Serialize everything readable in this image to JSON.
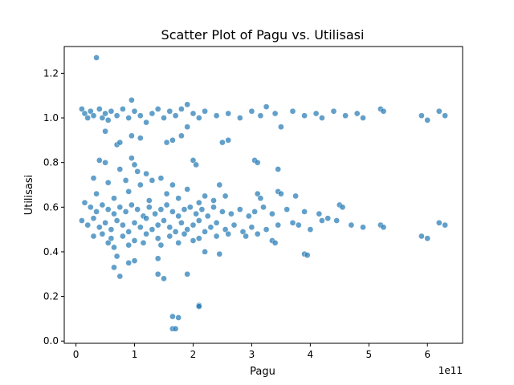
{
  "chart_data": {
    "type": "scatter",
    "title": "Scatter Plot of Pagu vs. Utilisasi",
    "xlabel": "Pagu",
    "ylabel": "Utilisasi",
    "x_offset_label": "1e11",
    "xlim": [
      -0.2,
      6.6
    ],
    "ylim": [
      -0.01,
      1.32
    ],
    "xticks": [
      0,
      1,
      2,
      3,
      4,
      5,
      6
    ],
    "xtick_labels": [
      "0",
      "1",
      "2",
      "3",
      "4",
      "5",
      "6"
    ],
    "yticks": [
      0.0,
      0.2,
      0.4,
      0.6,
      0.8,
      1.0,
      1.2
    ],
    "ytick_labels": [
      "0.0",
      "0.2",
      "0.4",
      "0.6",
      "0.8",
      "1.0",
      "1.2"
    ],
    "grid": false,
    "marker_color": "#1f77b4",
    "points": [
      {
        "x": 0.35,
        "y": 1.27
      },
      {
        "x": 0.1,
        "y": 1.04
      },
      {
        "x": 0.15,
        "y": 1.02
      },
      {
        "x": 0.2,
        "y": 1.0
      },
      {
        "x": 0.25,
        "y": 1.03
      },
      {
        "x": 0.3,
        "y": 1.01
      },
      {
        "x": 0.4,
        "y": 1.04
      },
      {
        "x": 0.45,
        "y": 1.0
      },
      {
        "x": 0.5,
        "y": 1.02
      },
      {
        "x": 0.55,
        "y": 0.99
      },
      {
        "x": 0.6,
        "y": 1.03
      },
      {
        "x": 0.7,
        "y": 1.01
      },
      {
        "x": 0.8,
        "y": 1.04
      },
      {
        "x": 0.9,
        "y": 1.0
      },
      {
        "x": 0.95,
        "y": 1.08
      },
      {
        "x": 1.0,
        "y": 1.03
      },
      {
        "x": 1.1,
        "y": 1.01
      },
      {
        "x": 1.2,
        "y": 0.98
      },
      {
        "x": 1.3,
        "y": 1.02
      },
      {
        "x": 1.4,
        "y": 1.04
      },
      {
        "x": 1.5,
        "y": 1.0
      },
      {
        "x": 1.6,
        "y": 1.03
      },
      {
        "x": 1.7,
        "y": 1.01
      },
      {
        "x": 1.8,
        "y": 1.04
      },
      {
        "x": 1.9,
        "y": 1.06
      },
      {
        "x": 2.0,
        "y": 1.02
      },
      {
        "x": 2.1,
        "y": 1.0
      },
      {
        "x": 2.2,
        "y": 1.03
      },
      {
        "x": 2.4,
        "y": 1.01
      },
      {
        "x": 2.6,
        "y": 1.02
      },
      {
        "x": 2.8,
        "y": 1.0
      },
      {
        "x": 3.0,
        "y": 1.03
      },
      {
        "x": 3.15,
        "y": 1.01
      },
      {
        "x": 3.25,
        "y": 1.05
      },
      {
        "x": 3.4,
        "y": 1.02
      },
      {
        "x": 3.5,
        "y": 0.96
      },
      {
        "x": 3.7,
        "y": 1.03
      },
      {
        "x": 3.9,
        "y": 1.01
      },
      {
        "x": 4.1,
        "y": 1.02
      },
      {
        "x": 4.2,
        "y": 1.0
      },
      {
        "x": 4.4,
        "y": 1.03
      },
      {
        "x": 4.6,
        "y": 1.01
      },
      {
        "x": 4.8,
        "y": 1.02
      },
      {
        "x": 4.9,
        "y": 1.0
      },
      {
        "x": 5.2,
        "y": 1.04
      },
      {
        "x": 5.25,
        "y": 1.03
      },
      {
        "x": 5.9,
        "y": 1.01
      },
      {
        "x": 6.0,
        "y": 0.99
      },
      {
        "x": 6.2,
        "y": 1.03
      },
      {
        "x": 6.3,
        "y": 1.01
      },
      {
        "x": 0.5,
        "y": 0.94
      },
      {
        "x": 0.7,
        "y": 0.88
      },
      {
        "x": 0.75,
        "y": 0.89
      },
      {
        "x": 0.95,
        "y": 0.92
      },
      {
        "x": 1.1,
        "y": 0.91
      },
      {
        "x": 1.55,
        "y": 0.89
      },
      {
        "x": 1.65,
        "y": 0.9
      },
      {
        "x": 1.8,
        "y": 0.92
      },
      {
        "x": 1.9,
        "y": 0.96
      },
      {
        "x": 2.5,
        "y": 0.89
      },
      {
        "x": 2.6,
        "y": 0.9
      },
      {
        "x": 0.4,
        "y": 0.81
      },
      {
        "x": 0.5,
        "y": 0.8
      },
      {
        "x": 0.95,
        "y": 0.82
      },
      {
        "x": 1.0,
        "y": 0.79
      },
      {
        "x": 2.0,
        "y": 0.81
      },
      {
        "x": 2.05,
        "y": 0.79
      },
      {
        "x": 3.05,
        "y": 0.81
      },
      {
        "x": 3.1,
        "y": 0.8
      },
      {
        "x": 3.45,
        "y": 0.77
      },
      {
        "x": 0.75,
        "y": 0.77
      },
      {
        "x": 1.05,
        "y": 0.76
      },
      {
        "x": 1.2,
        "y": 0.75
      },
      {
        "x": 0.3,
        "y": 0.73
      },
      {
        "x": 0.55,
        "y": 0.71
      },
      {
        "x": 0.85,
        "y": 0.72
      },
      {
        "x": 1.1,
        "y": 0.7
      },
      {
        "x": 1.3,
        "y": 0.72
      },
      {
        "x": 1.45,
        "y": 0.73
      },
      {
        "x": 1.65,
        "y": 0.7
      },
      {
        "x": 1.9,
        "y": 0.68
      },
      {
        "x": 2.2,
        "y": 0.65
      },
      {
        "x": 2.45,
        "y": 0.7
      },
      {
        "x": 2.55,
        "y": 0.65
      },
      {
        "x": 3.1,
        "y": 0.66
      },
      {
        "x": 3.15,
        "y": 0.64
      },
      {
        "x": 3.45,
        "y": 0.67
      },
      {
        "x": 3.5,
        "y": 0.66
      },
      {
        "x": 3.75,
        "y": 0.65
      },
      {
        "x": 0.35,
        "y": 0.66
      },
      {
        "x": 0.65,
        "y": 0.64
      },
      {
        "x": 0.9,
        "y": 0.67
      },
      {
        "x": 1.25,
        "y": 0.63
      },
      {
        "x": 1.55,
        "y": 0.66
      },
      {
        "x": 1.75,
        "y": 0.64
      },
      {
        "x": 2.1,
        "y": 0.62
      },
      {
        "x": 2.35,
        "y": 0.63
      },
      {
        "x": 4.5,
        "y": 0.61
      },
      {
        "x": 4.55,
        "y": 0.6
      },
      {
        "x": 0.15,
        "y": 0.62
      },
      {
        "x": 0.25,
        "y": 0.6
      },
      {
        "x": 0.35,
        "y": 0.58
      },
      {
        "x": 0.45,
        "y": 0.61
      },
      {
        "x": 0.55,
        "y": 0.59
      },
      {
        "x": 0.65,
        "y": 0.57
      },
      {
        "x": 0.75,
        "y": 0.6
      },
      {
        "x": 0.85,
        "y": 0.58
      },
      {
        "x": 0.95,
        "y": 0.61
      },
      {
        "x": 1.05,
        "y": 0.59
      },
      {
        "x": 1.15,
        "y": 0.56
      },
      {
        "x": 1.25,
        "y": 0.6
      },
      {
        "x": 1.35,
        "y": 0.57
      },
      {
        "x": 1.45,
        "y": 0.59
      },
      {
        "x": 1.55,
        "y": 0.61
      },
      {
        "x": 1.65,
        "y": 0.58
      },
      {
        "x": 1.75,
        "y": 0.56
      },
      {
        "x": 1.85,
        "y": 0.59
      },
      {
        "x": 1.95,
        "y": 0.6
      },
      {
        "x": 2.05,
        "y": 0.57
      },
      {
        "x": 2.15,
        "y": 0.59
      },
      {
        "x": 2.25,
        "y": 0.56
      },
      {
        "x": 2.35,
        "y": 0.6
      },
      {
        "x": 2.5,
        "y": 0.58
      },
      {
        "x": 2.65,
        "y": 0.57
      },
      {
        "x": 2.8,
        "y": 0.59
      },
      {
        "x": 2.95,
        "y": 0.56
      },
      {
        "x": 3.05,
        "y": 0.58
      },
      {
        "x": 3.2,
        "y": 0.6
      },
      {
        "x": 3.35,
        "y": 0.57
      },
      {
        "x": 3.6,
        "y": 0.59
      },
      {
        "x": 3.9,
        "y": 0.58
      },
      {
        "x": 4.15,
        "y": 0.57
      },
      {
        "x": 4.3,
        "y": 0.55
      },
      {
        "x": 4.45,
        "y": 0.54
      },
      {
        "x": 4.7,
        "y": 0.52
      },
      {
        "x": 4.9,
        "y": 0.51
      },
      {
        "x": 5.2,
        "y": 0.52
      },
      {
        "x": 5.25,
        "y": 0.51
      },
      {
        "x": 6.2,
        "y": 0.53
      },
      {
        "x": 6.3,
        "y": 0.52
      },
      {
        "x": 5.9,
        "y": 0.47
      },
      {
        "x": 6.0,
        "y": 0.46
      },
      {
        "x": 0.1,
        "y": 0.54
      },
      {
        "x": 0.2,
        "y": 0.52
      },
      {
        "x": 0.3,
        "y": 0.55
      },
      {
        "x": 0.4,
        "y": 0.51
      },
      {
        "x": 0.5,
        "y": 0.53
      },
      {
        "x": 0.6,
        "y": 0.5
      },
      {
        "x": 0.7,
        "y": 0.54
      },
      {
        "x": 0.8,
        "y": 0.52
      },
      {
        "x": 0.9,
        "y": 0.49
      },
      {
        "x": 1.0,
        "y": 0.53
      },
      {
        "x": 1.1,
        "y": 0.51
      },
      {
        "x": 1.2,
        "y": 0.55
      },
      {
        "x": 1.3,
        "y": 0.5
      },
      {
        "x": 1.4,
        "y": 0.52
      },
      {
        "x": 1.5,
        "y": 0.54
      },
      {
        "x": 1.6,
        "y": 0.51
      },
      {
        "x": 1.7,
        "y": 0.49
      },
      {
        "x": 1.8,
        "y": 0.53
      },
      {
        "x": 1.9,
        "y": 0.5
      },
      {
        "x": 2.0,
        "y": 0.52
      },
      {
        "x": 2.1,
        "y": 0.54
      },
      {
        "x": 2.2,
        "y": 0.49
      },
      {
        "x": 2.3,
        "y": 0.51
      },
      {
        "x": 2.4,
        "y": 0.53
      },
      {
        "x": 2.55,
        "y": 0.5
      },
      {
        "x": 2.7,
        "y": 0.52
      },
      {
        "x": 2.85,
        "y": 0.49
      },
      {
        "x": 3.0,
        "y": 0.51
      },
      {
        "x": 3.25,
        "y": 0.5
      },
      {
        "x": 3.45,
        "y": 0.52
      },
      {
        "x": 3.7,
        "y": 0.53
      },
      {
        "x": 3.8,
        "y": 0.52
      },
      {
        "x": 4.0,
        "y": 0.5
      },
      {
        "x": 4.2,
        "y": 0.54
      },
      {
        "x": 0.3,
        "y": 0.47
      },
      {
        "x": 0.45,
        "y": 0.48
      },
      {
        "x": 0.6,
        "y": 0.46
      },
      {
        "x": 0.8,
        "y": 0.47
      },
      {
        "x": 1.0,
        "y": 0.45
      },
      {
        "x": 1.2,
        "y": 0.48
      },
      {
        "x": 1.4,
        "y": 0.46
      },
      {
        "x": 1.6,
        "y": 0.47
      },
      {
        "x": 1.85,
        "y": 0.48
      },
      {
        "x": 2.1,
        "y": 0.46
      },
      {
        "x": 2.4,
        "y": 0.47
      },
      {
        "x": 2.6,
        "y": 0.48
      },
      {
        "x": 2.9,
        "y": 0.47
      },
      {
        "x": 3.1,
        "y": 0.48
      },
      {
        "x": 3.35,
        "y": 0.45
      },
      {
        "x": 3.4,
        "y": 0.44
      },
      {
        "x": 0.55,
        "y": 0.44
      },
      {
        "x": 0.65,
        "y": 0.42
      },
      {
        "x": 0.9,
        "y": 0.43
      },
      {
        "x": 1.15,
        "y": 0.44
      },
      {
        "x": 1.45,
        "y": 0.43
      },
      {
        "x": 1.75,
        "y": 0.44
      },
      {
        "x": 2.0,
        "y": 0.45
      },
      {
        "x": 3.9,
        "y": 0.39
      },
      {
        "x": 3.95,
        "y": 0.385
      },
      {
        "x": 2.2,
        "y": 0.4
      },
      {
        "x": 2.45,
        "y": 0.39
      },
      {
        "x": 0.7,
        "y": 0.38
      },
      {
        "x": 1.0,
        "y": 0.36
      },
      {
        "x": 0.9,
        "y": 0.35
      },
      {
        "x": 1.4,
        "y": 0.37
      },
      {
        "x": 0.65,
        "y": 0.33
      },
      {
        "x": 0.75,
        "y": 0.29
      },
      {
        "x": 1.4,
        "y": 0.3
      },
      {
        "x": 1.5,
        "y": 0.28
      },
      {
        "x": 1.9,
        "y": 0.3
      },
      {
        "x": 2.1,
        "y": 0.16
      },
      {
        "x": 2.1,
        "y": 0.155
      },
      {
        "x": 1.65,
        "y": 0.11
      },
      {
        "x": 1.75,
        "y": 0.105
      },
      {
        "x": 1.65,
        "y": 0.055
      },
      {
        "x": 1.7,
        "y": 0.055
      }
    ]
  }
}
